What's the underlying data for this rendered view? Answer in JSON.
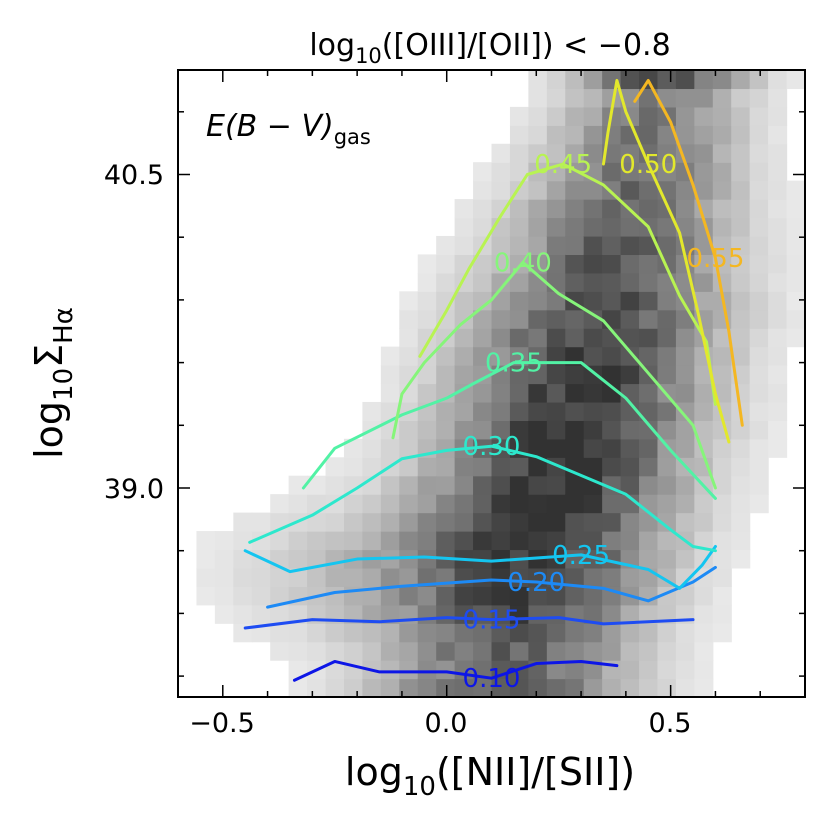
{
  "chart_data": {
    "type": "heatmap",
    "title": {
      "prefix": "log",
      "sub": "10",
      "suffix": "([OIII]/[OII]) < −0.8"
    },
    "xlabel": {
      "prefix": "log",
      "sub": "10",
      "suffix": "([NII]/[SII])"
    },
    "ylabel": {
      "prefix": "log",
      "sub": "10",
      "mid": "Σ",
      "sub2": "Hα"
    },
    "annotation": {
      "main": "E(B − V)",
      "sub": "gas"
    },
    "xlim": [
      -0.6,
      0.8
    ],
    "ylim": [
      38.0,
      41.0
    ],
    "xticks": [
      -0.5,
      0.0,
      0.5
    ],
    "xtick_labels": [
      "−0.5",
      "0.0",
      "0.5"
    ],
    "yticks": [
      39.0,
      40.5
    ],
    "ytick_labels": [
      "39.0",
      "40.5"
    ],
    "background": "2D number-density histogram (grayscale)",
    "contours": [
      {
        "label": "0.10",
        "color": "#0d16e6",
        "points": [
          [
            -0.34,
            38.08
          ],
          [
            -0.25,
            38.17
          ],
          [
            -0.15,
            38.12
          ],
          [
            0.0,
            38.12
          ],
          [
            0.1,
            38.09
          ],
          [
            0.2,
            38.16
          ],
          [
            0.3,
            38.17
          ],
          [
            0.38,
            38.15
          ]
        ]
      },
      {
        "label": "0.15",
        "color": "#1e4cf2",
        "points": [
          [
            -0.45,
            38.33
          ],
          [
            -0.3,
            38.37
          ],
          [
            -0.15,
            38.36
          ],
          [
            0.0,
            38.38
          ],
          [
            0.1,
            38.37
          ],
          [
            0.25,
            38.38
          ],
          [
            0.35,
            38.35
          ],
          [
            0.45,
            38.36
          ],
          [
            0.55,
            38.37
          ]
        ]
      },
      {
        "label": "0.20",
        "color": "#1d8af5",
        "points": [
          [
            -0.4,
            38.43
          ],
          [
            -0.25,
            38.5
          ],
          [
            -0.1,
            38.53
          ],
          [
            0.1,
            38.56
          ],
          [
            0.2,
            38.55
          ],
          [
            0.35,
            38.52
          ],
          [
            0.45,
            38.46
          ],
          [
            0.55,
            38.55
          ],
          [
            0.6,
            38.62
          ]
        ]
      },
      {
        "label": "0.25",
        "color": "#14c5f0",
        "points": [
          [
            -0.45,
            38.7
          ],
          [
            -0.35,
            38.6
          ],
          [
            -0.2,
            38.66
          ],
          [
            -0.05,
            38.67
          ],
          [
            0.1,
            38.65
          ],
          [
            0.3,
            38.68
          ],
          [
            0.45,
            38.61
          ],
          [
            0.52,
            38.52
          ],
          [
            0.57,
            38.63
          ],
          [
            0.6,
            38.72
          ]
        ]
      },
      {
        "label": "0.30",
        "color": "#2de8cd",
        "points": [
          [
            -0.44,
            38.74
          ],
          [
            -0.3,
            38.87
          ],
          [
            -0.2,
            39.0
          ],
          [
            -0.1,
            39.14
          ],
          [
            0.0,
            39.18
          ],
          [
            0.1,
            39.2
          ],
          [
            0.2,
            39.15
          ],
          [
            0.4,
            38.97
          ],
          [
            0.5,
            38.8
          ],
          [
            0.55,
            38.72
          ],
          [
            0.6,
            38.7
          ]
        ]
      },
      {
        "label": "0.35",
        "color": "#52f2a5",
        "points": [
          [
            -0.32,
            39.0
          ],
          [
            -0.25,
            39.19
          ],
          [
            -0.1,
            39.35
          ],
          [
            0.0,
            39.43
          ],
          [
            0.06,
            39.5
          ],
          [
            0.15,
            39.6
          ],
          [
            0.3,
            39.6
          ],
          [
            0.4,
            39.43
          ],
          [
            0.5,
            39.18
          ],
          [
            0.6,
            38.95
          ]
        ]
      },
      {
        "label": "0.40",
        "color": "#86f57a",
        "points": [
          [
            -0.12,
            39.24
          ],
          [
            -0.1,
            39.45
          ],
          [
            -0.05,
            39.6
          ],
          [
            0.03,
            39.78
          ],
          [
            0.1,
            39.9
          ],
          [
            0.17,
            40.08
          ],
          [
            0.25,
            39.93
          ],
          [
            0.35,
            39.8
          ],
          [
            0.45,
            39.55
          ],
          [
            0.55,
            39.3
          ],
          [
            0.6,
            39.0
          ]
        ]
      },
      {
        "label": "0.45",
        "color": "#b8f352",
        "points": [
          [
            -0.06,
            39.63
          ],
          [
            0.0,
            39.85
          ],
          [
            0.05,
            40.05
          ],
          [
            0.12,
            40.3
          ],
          [
            0.18,
            40.5
          ],
          [
            0.26,
            40.55
          ],
          [
            0.35,
            40.45
          ],
          [
            0.45,
            40.25
          ],
          [
            0.52,
            39.92
          ],
          [
            0.58,
            39.7
          ],
          [
            0.6,
            39.4
          ]
        ]
      },
      {
        "label": "0.50",
        "color": "#e2e82c",
        "points": [
          [
            0.35,
            40.55
          ],
          [
            0.36,
            40.7
          ],
          [
            0.38,
            40.95
          ],
          [
            0.4,
            40.8
          ],
          [
            0.45,
            40.55
          ],
          [
            0.52,
            40.22
          ],
          [
            0.56,
            39.85
          ],
          [
            0.6,
            39.45
          ],
          [
            0.63,
            39.22
          ]
        ]
      },
      {
        "label": "0.55",
        "color": "#f4b722",
        "points": [
          [
            0.42,
            40.85
          ],
          [
            0.45,
            40.95
          ],
          [
            0.5,
            40.75
          ],
          [
            0.55,
            40.45
          ],
          [
            0.6,
            40.1
          ],
          [
            0.63,
            39.75
          ],
          [
            0.65,
            39.45
          ],
          [
            0.66,
            39.3
          ]
        ]
      }
    ]
  }
}
